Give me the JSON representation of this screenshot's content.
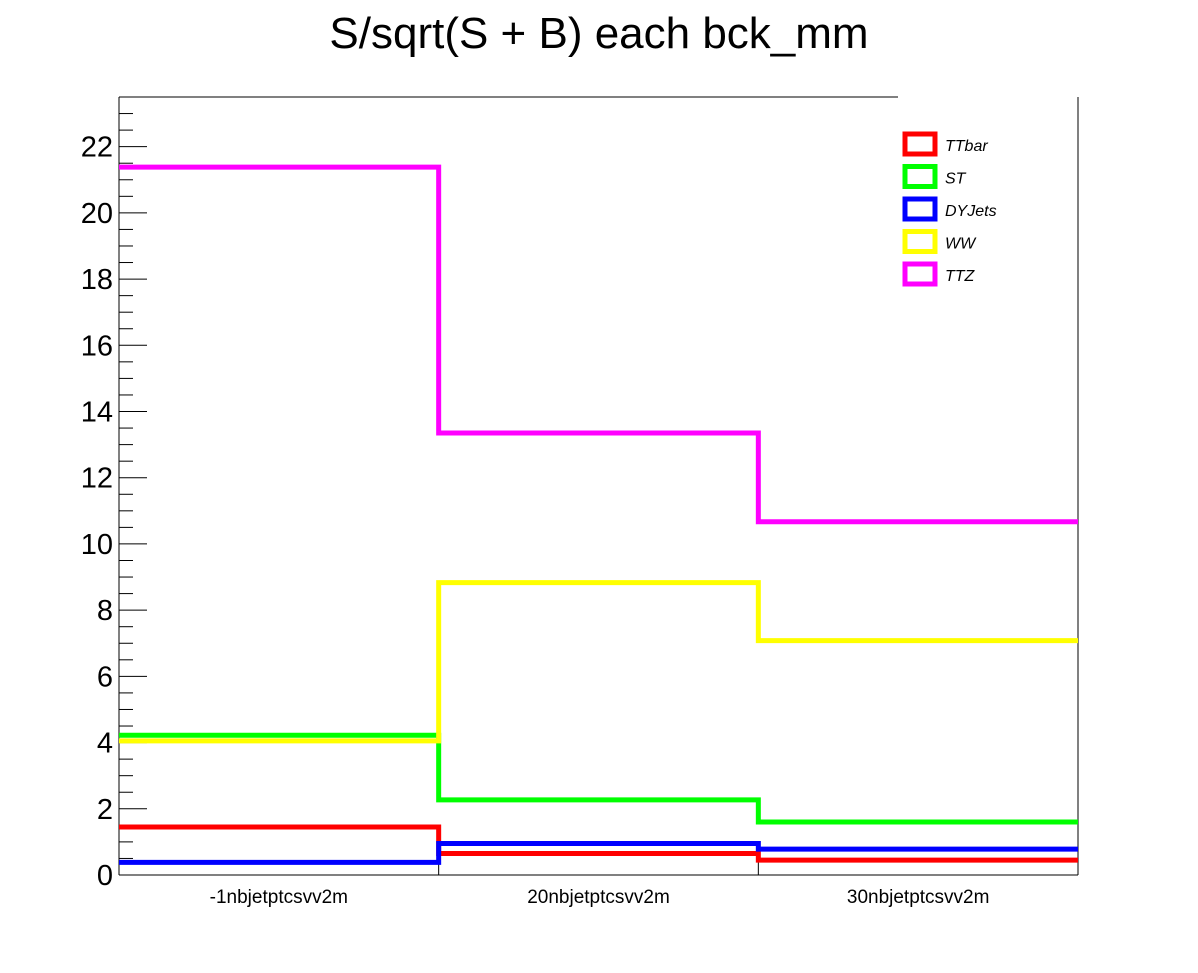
{
  "chart_data": {
    "type": "line",
    "title": "S/sqrt(S + B) each bck_mm",
    "xlabel": "",
    "ylabel": "",
    "categories": [
      "-1nbjetptcsvv2m",
      "20nbjetptcsvv2m",
      "30nbjetptcsvv2m"
    ],
    "ylim": [
      0,
      23.5
    ],
    "yticks": [
      0,
      2,
      4,
      6,
      8,
      10,
      12,
      14,
      16,
      18,
      20,
      22
    ],
    "ytick_labels": [
      "0",
      "2",
      "4",
      "6",
      "8",
      "10",
      "12",
      "14",
      "16",
      "18",
      "20",
      "22"
    ],
    "grid": false,
    "legend_position": "top-right",
    "series": [
      {
        "name": "TTbar",
        "values": [
          1.45,
          0.65,
          0.45
        ],
        "color": "#ff0000"
      },
      {
        "name": "ST",
        "values": [
          4.22,
          2.27,
          1.6
        ],
        "color": "#00ff00"
      },
      {
        "name": "DYJets",
        "values": [
          0.38,
          0.95,
          0.78
        ],
        "color": "#0000ff"
      },
      {
        "name": "WW",
        "values": [
          4.05,
          8.83,
          7.08
        ],
        "color": "#ffff00"
      },
      {
        "name": "TTZ",
        "values": [
          21.38,
          13.35,
          10.67
        ],
        "color": "#ff00ff"
      }
    ]
  }
}
